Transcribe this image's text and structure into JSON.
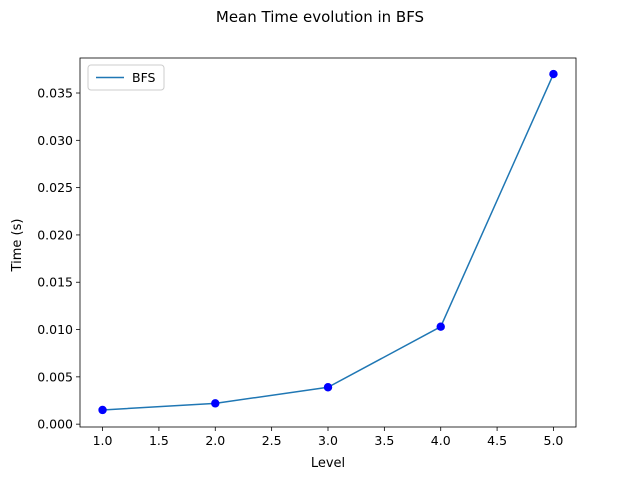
{
  "chart_data": {
    "type": "line",
    "title": "Mean Time evolution in BFS",
    "xlabel": "Level",
    "ylabel": "Time (s)",
    "xlim": [
      0.8,
      5.2
    ],
    "ylim": [
      -0.0003,
      0.0387
    ],
    "x_ticks": [
      1.0,
      1.5,
      2.0,
      2.5,
      3.0,
      3.5,
      4.0,
      4.5,
      5.0
    ],
    "x_tick_labels": [
      "1.0",
      "1.5",
      "2.0",
      "2.5",
      "3.0",
      "3.5",
      "4.0",
      "4.5",
      "5.0"
    ],
    "y_ticks": [
      0.0,
      0.005,
      0.01,
      0.015,
      0.02,
      0.025,
      0.03,
      0.035
    ],
    "y_tick_labels": [
      "0.000",
      "0.005",
      "0.010",
      "0.015",
      "0.020",
      "0.025",
      "0.030",
      "0.035"
    ],
    "grid": false,
    "legend_position": "top-left",
    "series": [
      {
        "name": "BFS",
        "x": [
          1,
          2,
          3,
          4,
          5
        ],
        "y": [
          0.0015,
          0.0022,
          0.0039,
          0.0103,
          0.037
        ],
        "line_color": "#1f77b4",
        "marker_color": "#0000ff"
      }
    ]
  }
}
